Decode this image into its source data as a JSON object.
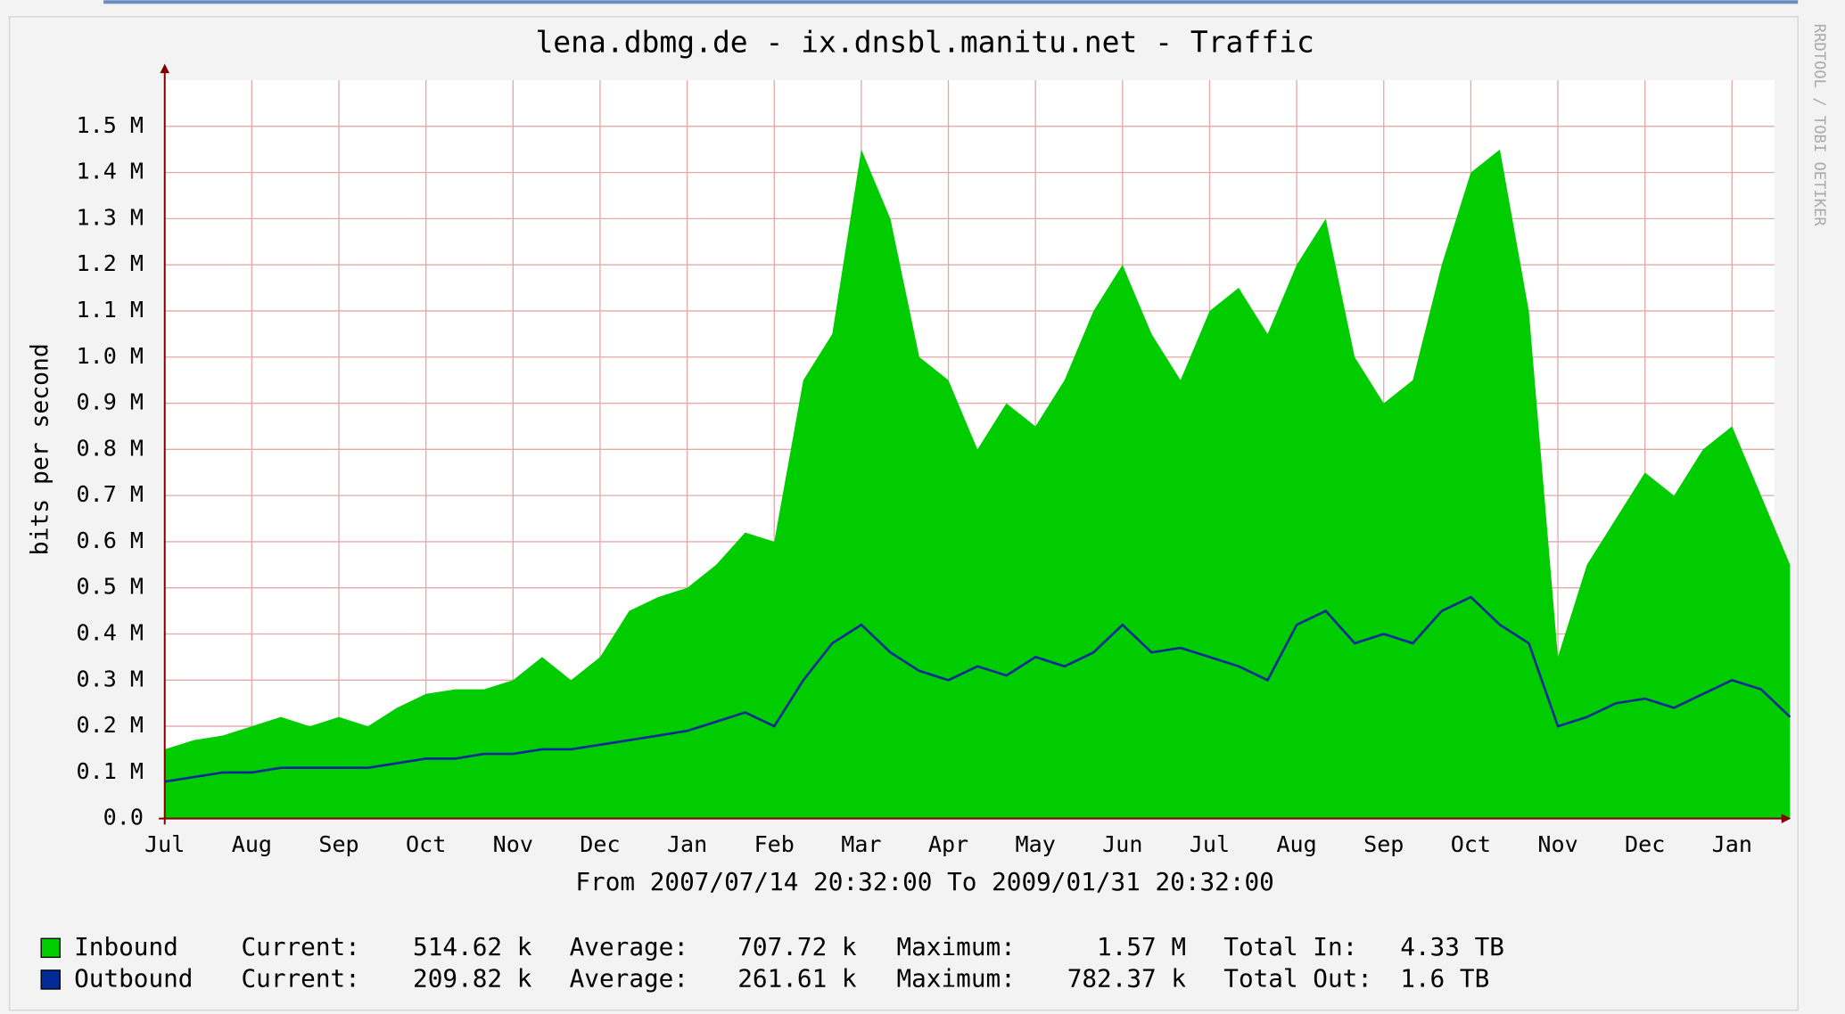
{
  "chart_data": {
    "type": "area",
    "title": "lena.dbmg.de -  ix.dnsbl.manitu.net - Traffic",
    "ylabel": "bits per second",
    "subtitle": "From 2007/07/14 20:32:00 To 2009/01/31 20:32:00",
    "watermark": "RRDTOOL / TOBI OETIKER",
    "categories": [
      "Jul",
      null,
      null,
      "Aug",
      null,
      null,
      "Sep",
      null,
      null,
      "Oct",
      null,
      null,
      "Nov",
      null,
      null,
      "Dec",
      null,
      null,
      "Jan",
      null,
      null,
      "Feb",
      null,
      null,
      "Mar",
      null,
      null,
      "Apr",
      null,
      null,
      "May",
      null,
      null,
      "Jun",
      null,
      null,
      "Jul",
      null,
      null,
      "Aug",
      null,
      null,
      "Sep",
      null,
      null,
      "Oct",
      null,
      null,
      "Nov",
      null,
      null,
      "Dec",
      null,
      null,
      "Jan",
      null,
      null
    ],
    "series": [
      {
        "name": "Inbound",
        "color": "#00cc00",
        "values": [
          0.15,
          0.17,
          0.18,
          0.2,
          0.22,
          0.2,
          0.22,
          0.2,
          0.24,
          0.27,
          0.28,
          0.28,
          0.3,
          0.35,
          0.3,
          0.35,
          0.45,
          0.48,
          0.5,
          0.55,
          0.62,
          0.6,
          0.95,
          1.05,
          1.45,
          1.3,
          1.0,
          0.95,
          0.8,
          0.9,
          0.85,
          0.95,
          1.1,
          1.2,
          1.05,
          0.95,
          1.1,
          1.15,
          1.05,
          1.2,
          1.3,
          1.0,
          0.9,
          0.95,
          1.2,
          1.4,
          1.45,
          1.1,
          0.35,
          0.55,
          0.65,
          0.75,
          0.7,
          0.8,
          0.85,
          0.7,
          0.55
        ]
      },
      {
        "name": "Outbound",
        "color": "#002a97",
        "values": [
          0.08,
          0.09,
          0.1,
          0.1,
          0.11,
          0.11,
          0.11,
          0.11,
          0.12,
          0.13,
          0.13,
          0.14,
          0.14,
          0.15,
          0.15,
          0.16,
          0.17,
          0.18,
          0.19,
          0.21,
          0.23,
          0.2,
          0.3,
          0.38,
          0.42,
          0.36,
          0.32,
          0.3,
          0.33,
          0.31,
          0.35,
          0.33,
          0.36,
          0.42,
          0.36,
          0.37,
          0.35,
          0.33,
          0.3,
          0.42,
          0.45,
          0.38,
          0.4,
          0.38,
          0.45,
          0.48,
          0.42,
          0.38,
          0.2,
          0.22,
          0.25,
          0.26,
          0.24,
          0.27,
          0.3,
          0.28,
          0.22
        ]
      }
    ],
    "ylim": [
      0,
      1.6
    ],
    "yticks": [
      {
        "value": 0,
        "label": "0.0"
      },
      {
        "value": 0.1,
        "label": "0.1 M"
      },
      {
        "value": 0.2,
        "label": "0.2 M"
      },
      {
        "value": 0.3,
        "label": "0.3 M"
      },
      {
        "value": 0.4,
        "label": "0.4 M"
      },
      {
        "value": 0.5,
        "label": "0.5 M"
      },
      {
        "value": 0.6,
        "label": "0.6 M"
      },
      {
        "value": 0.7,
        "label": "0.7 M"
      },
      {
        "value": 0.8,
        "label": "0.8 M"
      },
      {
        "value": 0.9,
        "label": "0.9 M"
      },
      {
        "value": 1.0,
        "label": "1.0 M"
      },
      {
        "value": 1.1,
        "label": "1.1 M"
      },
      {
        "value": 1.2,
        "label": "1.2 M"
      },
      {
        "value": 1.3,
        "label": "1.3 M"
      },
      {
        "value": 1.4,
        "label": "1.4 M"
      },
      {
        "value": 1.5,
        "label": "1.5 M"
      }
    ],
    "grid": true,
    "legend_stats": [
      [
        "Current:",
        "514.62 k",
        "Average:",
        "707.72 k",
        "Maximum:",
        "1.57 M",
        "Total In:",
        "4.33 TB"
      ],
      [
        "Current:",
        "209.82 k",
        "Average:",
        "261.61 k",
        "Maximum:",
        "782.37 k",
        "Total Out:",
        "1.6 TB"
      ]
    ]
  }
}
